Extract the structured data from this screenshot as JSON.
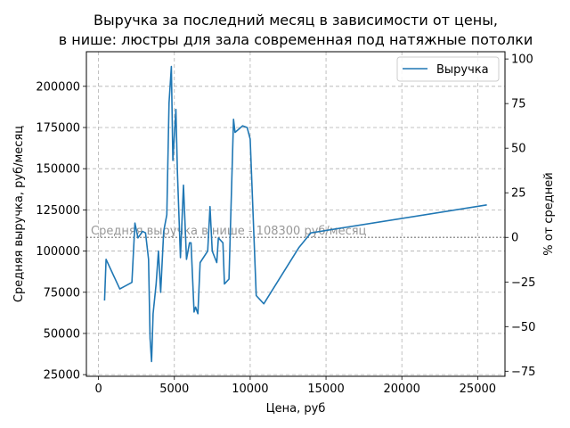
{
  "chart_data": {
    "type": "line",
    "title_line1": "Выручка за последний месяц в зависимости от цены,",
    "title_line2": "в нише: люстры для зала современная под натяжные потолки",
    "xlabel": "Цена, руб",
    "ylabel": "Средняя выручка, руб/месяц",
    "ylabel_right": "% от средней",
    "xlim": [
      -800,
      26800
    ],
    "ylim": [
      24000,
      221000
    ],
    "xticks": [
      0,
      5000,
      10000,
      15000,
      20000,
      25000
    ],
    "yticks": [
      25000,
      50000,
      75000,
      100000,
      125000,
      150000,
      175000,
      200000
    ],
    "yticks_right": [
      -75,
      -50,
      -25,
      0,
      25,
      50,
      75,
      100
    ],
    "grid": true,
    "legend_position": "top-right",
    "reference_line": {
      "value": 108300,
      "label": "Средняя выручка в нише - 108300 руб/месяц",
      "color": "#999999"
    },
    "series": [
      {
        "name": "Выручка",
        "color": "#1f77b4",
        "points": [
          [
            400,
            70000
          ],
          [
            500,
            95000
          ],
          [
            1400,
            77000
          ],
          [
            2200,
            81000
          ],
          [
            2400,
            117000
          ],
          [
            2600,
            108000
          ],
          [
            2900,
            112000
          ],
          [
            3100,
            111000
          ],
          [
            3300,
            95000
          ],
          [
            3400,
            47000
          ],
          [
            3500,
            33000
          ],
          [
            3600,
            62000
          ],
          [
            3800,
            80000
          ],
          [
            3950,
            100000
          ],
          [
            4100,
            75000
          ],
          [
            4300,
            112000
          ],
          [
            4500,
            122000
          ],
          [
            4650,
            190000
          ],
          [
            4800,
            212000
          ],
          [
            4900,
            155000
          ],
          [
            5100,
            186000
          ],
          [
            5200,
            148000
          ],
          [
            5400,
            96000
          ],
          [
            5600,
            140000
          ],
          [
            5800,
            95000
          ],
          [
            6000,
            105000
          ],
          [
            6100,
            105000
          ],
          [
            6300,
            63000
          ],
          [
            6400,
            66000
          ],
          [
            6550,
            62000
          ],
          [
            6700,
            93000
          ],
          [
            7200,
            100000
          ],
          [
            7350,
            127000
          ],
          [
            7500,
            100000
          ],
          [
            7800,
            93000
          ],
          [
            7900,
            108000
          ],
          [
            8200,
            105000
          ],
          [
            8300,
            80000
          ],
          [
            8600,
            83000
          ],
          [
            8900,
            180000
          ],
          [
            9000,
            172000
          ],
          [
            9500,
            176000
          ],
          [
            9800,
            175000
          ],
          [
            10000,
            168000
          ],
          [
            10400,
            73000
          ],
          [
            10900,
            68000
          ],
          [
            13200,
            102000
          ],
          [
            14000,
            111000
          ],
          [
            25600,
            128000
          ]
        ]
      }
    ]
  }
}
